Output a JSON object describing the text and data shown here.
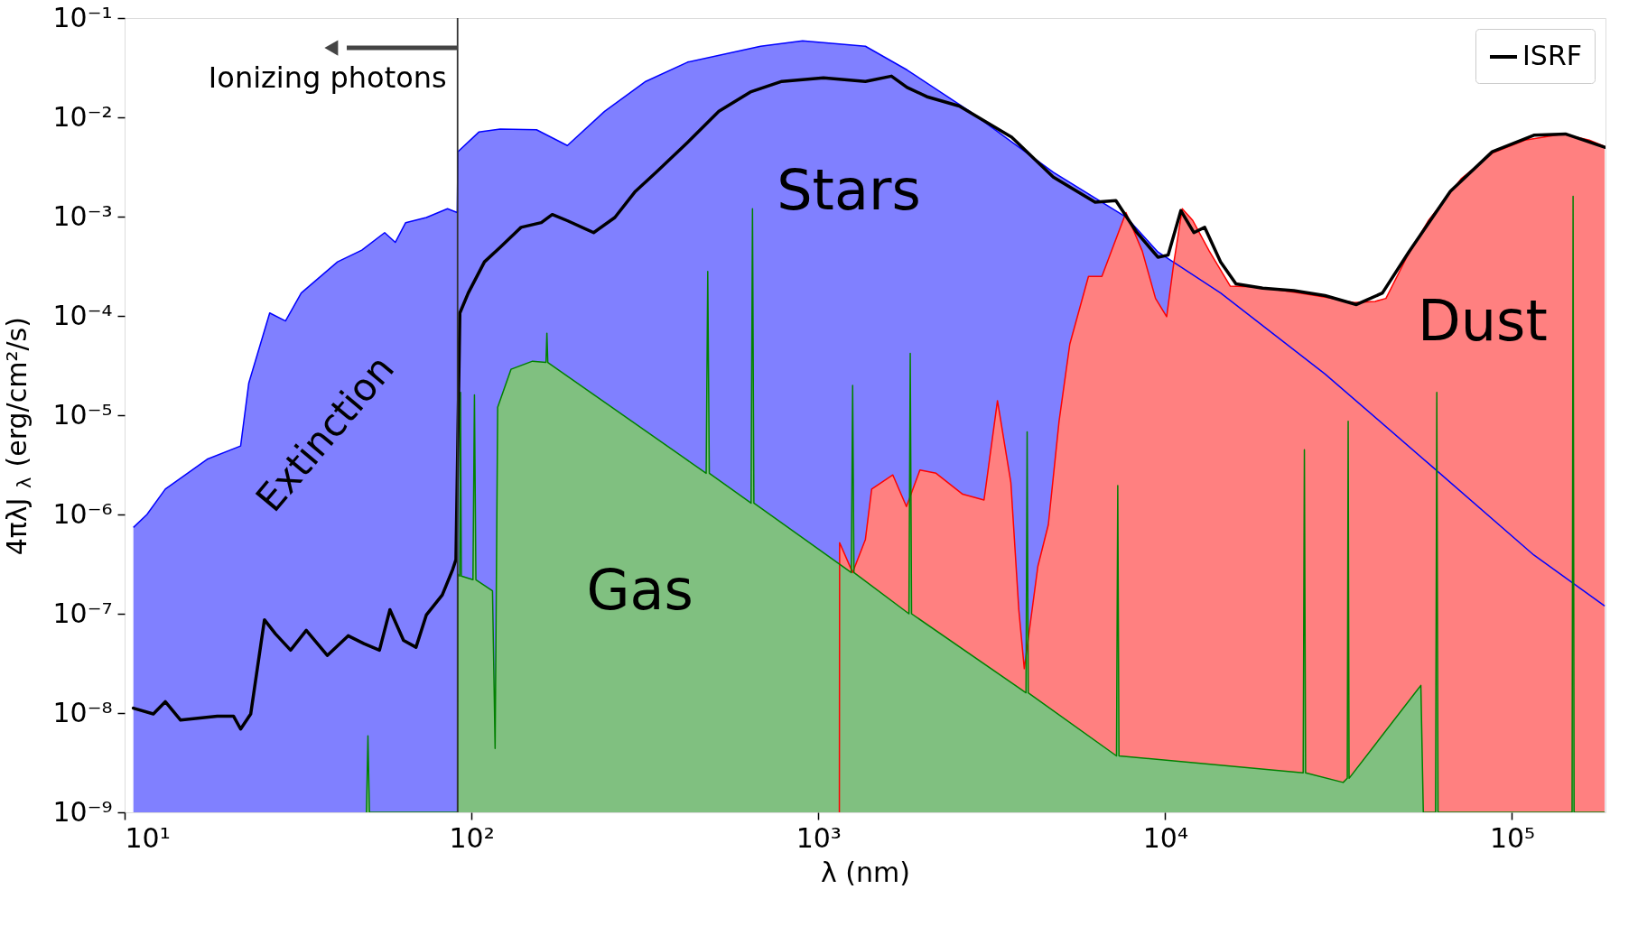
{
  "chart_data": {
    "type": "area",
    "xlabel": "λ (nm)",
    "ylabel": "4πλJ$_{λ}$ (erg/cm²/s)",
    "log": "xy",
    "xlim": [
      10,
      186000
    ],
    "ylim": [
      1e-09,
      0.1
    ],
    "xticks": [
      {
        "value": 10,
        "label": "10¹"
      },
      {
        "value": 100,
        "label": "10²"
      },
      {
        "value": 1000,
        "label": "10³"
      },
      {
        "value": 10000,
        "label": "10⁴"
      },
      {
        "value": 100000,
        "label": "10⁵"
      }
    ],
    "yticks": [
      {
        "value": 1e-09,
        "label": "10⁻⁹"
      },
      {
        "value": 1e-08,
        "label": "10⁻⁸"
      },
      {
        "value": 1e-07,
        "label": "10⁻⁷"
      },
      {
        "value": 1e-06,
        "label": "10⁻⁶"
      },
      {
        "value": 1e-05,
        "label": "10⁻⁵"
      },
      {
        "value": 0.0001,
        "label": "10⁻⁴"
      },
      {
        "value": 0.001,
        "label": "10⁻³"
      },
      {
        "value": 0.01,
        "label": "10⁻²"
      },
      {
        "value": 0.1,
        "label": "10⁻¹"
      }
    ],
    "legend": "top right",
    "ref_lines": [
      {
        "axis": "x",
        "value": 91.2,
        "color": "#333333"
      }
    ],
    "annotations": [
      {
        "text": "Ionizing photons",
        "x": 91.2,
        "y": 0.05
      },
      "Extinction"
    ],
    "series": [
      {
        "name": "Stars",
        "color": "#8080ff",
        "x": [
          10.6,
          11.6,
          13.1,
          17.3,
          21.6,
          22.8,
          26.2,
          29.1,
          32.3,
          41.1,
          48.3,
          56.2,
          60.3,
          64.6,
          74.1,
          85.3,
          91.0,
          91.4,
          105,
          121,
          154,
          189,
          242,
          318,
          420,
          682,
          901,
          1367,
          1803,
          2734,
          4760,
          7740,
          9530,
          14450,
          28900,
          57800,
          115600,
          185000
        ],
        "values": [
          7.4e-07,
          1e-06,
          1.8e-06,
          3.6e-06,
          4.9e-06,
          2.1e-05,
          0.000107,
          8.9e-05,
          0.00017,
          0.00035,
          0.00046,
          0.00069,
          0.00055,
          0.00087,
          0.00098,
          0.0012,
          0.0011,
          0.0045,
          0.0071,
          0.0076,
          0.0075,
          0.0052,
          0.0115,
          0.023,
          0.036,
          0.052,
          0.059,
          0.052,
          0.03,
          0.0115,
          0.0028,
          0.00098,
          0.00044,
          0.00017,
          2.6e-05,
          3.2e-06,
          3.9e-07,
          1.2e-07
        ]
      },
      {
        "name": "Dust",
        "color": "#ff8080",
        "x": [
          1150,
          1152,
          1256,
          1367,
          1425,
          1640,
          1795,
          1963,
          2185,
          2608,
          3005,
          3285,
          3590,
          3785,
          3925,
          4295,
          4605,
          4945,
          5310,
          6010,
          6570,
          7710,
          8590,
          9380,
          10100,
          10600,
          11200,
          12000,
          13400,
          15400,
          18500,
          24500,
          30300,
          35000,
          40300,
          43300,
          49900,
          57500,
          71300,
          88100,
          109000,
          140000,
          167000,
          185000
        ],
        "values": [
          1e-09,
          5.2e-07,
          2.6e-07,
          5.6e-07,
          1.8e-06,
          2.5e-06,
          1.2e-06,
          2.8e-06,
          2.6e-06,
          1.6e-06,
          1.4e-06,
          1.4e-05,
          2.1e-06,
          1.1e-07,
          2.8e-08,
          3e-07,
          7.9e-07,
          8.7e-06,
          5.2e-05,
          0.00025,
          0.00025,
          0.0011,
          0.00045,
          0.00015,
          9.8e-05,
          0.00035,
          0.0012,
          0.00092,
          0.00045,
          0.0002,
          0.000195,
          0.00017,
          0.00015,
          0.000136,
          0.00014,
          0.00015,
          0.0004,
          0.00092,
          0.0024,
          0.0044,
          0.0059,
          0.0068,
          0.0059,
          0.0051
        ]
      },
      {
        "name": "Gas",
        "color": "#80c080",
        "x": [
          49.8,
          50.3,
          50.8,
          91.2,
          91.4,
          92.5,
          93,
          93.5,
          101,
          102,
          103,
          115,
          117,
          119,
          130,
          150,
          164,
          165,
          166,
          475,
          480,
          485,
          640,
          646,
          652,
          1245,
          1256,
          1267,
          1825,
          1841,
          1857,
          3970,
          4000,
          4030,
          7240,
          7300,
          7360,
          25000,
          25200,
          25400,
          32600,
          33500,
          33700,
          33900,
          54600,
          55500,
          60200,
          60700,
          61200,
          149000,
          150000,
          151000,
          185000
        ],
        "values": [
          1e-09,
          5.9e-09,
          1e-09,
          1e-09,
          2.5e-07,
          2.4e-07,
          1.7e-05,
          2.4e-07,
          2.2e-07,
          1.6e-05,
          2.2e-07,
          1.7e-07,
          4.4e-09,
          1.2e-05,
          2.9e-05,
          3.5e-05,
          3.4e-05,
          6.7e-05,
          3.4e-05,
          2.6e-06,
          0.00028,
          2.6e-06,
          1.3e-06,
          0.0012,
          1.3e-06,
          2.6e-07,
          2e-05,
          2.6e-07,
          1e-07,
          4.2e-05,
          1e-07,
          1.6e-08,
          6.8e-06,
          1.6e-08,
          3.7e-09,
          1.95e-06,
          3.7e-09,
          2.5e-09,
          4.5e-06,
          2.5e-09,
          2e-09,
          2.2e-09,
          8.7e-06,
          2.2e-09,
          1.9e-08,
          1e-09,
          1e-09,
          1.7e-05,
          1e-09,
          1e-09,
          0.0016,
          1e-09,
          1e-09
        ]
      },
      {
        "name": "ISRF",
        "type": "line",
        "color": "#000000",
        "x": [
          10.6,
          12.1,
          13.1,
          14.5,
          18.5,
          20.6,
          21.6,
          23.1,
          25.3,
          27.2,
          30.1,
          33.4,
          38.4,
          44.1,
          49.0,
          54.3,
          58.2,
          63.7,
          69.2,
          74.1,
          82.4,
          88.3,
          90.2,
          92.6,
          97.9,
          109,
          121,
          139,
          159,
          171,
          189,
          225,
          259,
          297,
          341,
          420,
          517,
          637,
          785,
          1035,
          1367,
          1625,
          1803,
          2070,
          2550,
          3610,
          4760,
          6280,
          7210,
          8290,
          9530,
          10200,
          11100,
          12100,
          13000,
          14450,
          16000,
          19100,
          23500,
          28900,
          35600,
          42300,
          50400,
          66400,
          87700,
          115600,
          142600,
          185000
        ],
        "values": [
          1.12e-08,
          9.8e-09,
          1.3e-08,
          8.5e-09,
          9.3e-09,
          9.3e-09,
          6.9e-09,
          9.8e-09,
          8.7e-08,
          6.3e-08,
          4.3e-08,
          6.8e-08,
          3.8e-08,
          6e-08,
          5e-08,
          4.3e-08,
          1.1e-07,
          5.4e-08,
          4.6e-08,
          9.7e-08,
          1.55e-07,
          2.8e-07,
          3.5e-07,
          0.000107,
          0.00017,
          0.00035,
          0.00049,
          0.00078,
          0.00087,
          0.00105,
          0.00091,
          0.00069,
          0.00098,
          0.0018,
          0.0028,
          0.0056,
          0.0115,
          0.018,
          0.023,
          0.025,
          0.023,
          0.026,
          0.02,
          0.016,
          0.013,
          0.0063,
          0.0025,
          0.0014,
          0.00145,
          0.00069,
          0.00039,
          0.00041,
          0.00115,
          0.00069,
          0.00078,
          0.00035,
          0.00021,
          0.00019,
          0.00018,
          0.00016,
          0.00013,
          0.00017,
          0.00044,
          0.0018,
          0.0045,
          0.0066,
          0.0068,
          0.005
        ]
      }
    ]
  }
}
